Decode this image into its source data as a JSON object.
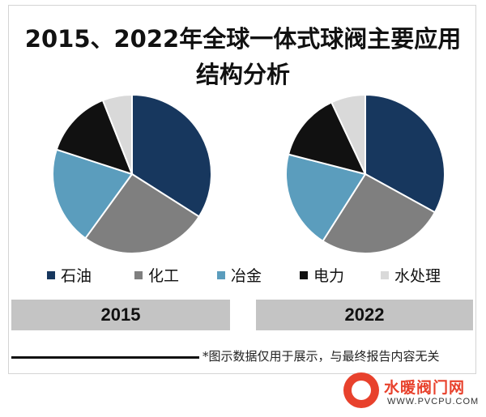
{
  "title_lines": [
    "2015、2022年全球一体式球阀主要应用",
    "结构分析"
  ],
  "chart_data": [
    {
      "type": "pie",
      "label": "2015",
      "categories": [
        "石油",
        "化工",
        "冶金",
        "电力",
        "水处理"
      ],
      "values": [
        34,
        26,
        20,
        14,
        6
      ],
      "colors": [
        "#17375e",
        "#7f7f7f",
        "#5b9dbd",
        "#111111",
        "#d9d9d9"
      ]
    },
    {
      "type": "pie",
      "label": "2022",
      "categories": [
        "石油",
        "化工",
        "冶金",
        "电力",
        "水处理"
      ],
      "values": [
        33,
        26,
        20,
        14,
        7
      ],
      "colors": [
        "#17375e",
        "#7f7f7f",
        "#5b9dbd",
        "#111111",
        "#d9d9d9"
      ]
    }
  ],
  "legend": [
    {
      "label": "石油",
      "color": "#17375e"
    },
    {
      "label": "化工",
      "color": "#7f7f7f"
    },
    {
      "label": "冶金",
      "color": "#5b9dbd"
    },
    {
      "label": "电力",
      "color": "#111111"
    },
    {
      "label": "水处理",
      "color": "#d9d9d9"
    }
  ],
  "year_labels": [
    "2015",
    "2022"
  ],
  "footer_note": "*图示数据仅用于展示，与最终报告内容无关",
  "watermark": {
    "name": "水暖阀门网",
    "url": "WWW.PVCPU.COM",
    "badge_color": "#e8412c"
  }
}
